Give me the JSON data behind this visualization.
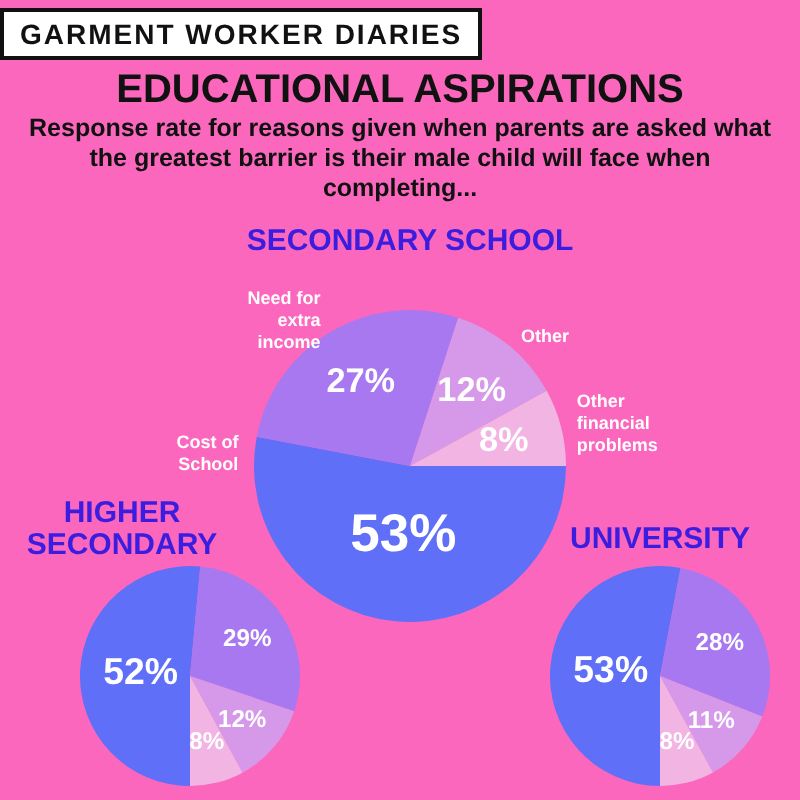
{
  "chart_data": [
    {
      "type": "pie",
      "title": "SECONDARY SCHOOL",
      "annotations": [
        "GARMENT WORKER DIARIES",
        "EDUCATIONAL ASPIRATIONS",
        "Response rate for reasons given when parents are asked what the greatest barrier is their male child will face when completing..."
      ],
      "categories": [
        "Cost of School",
        "Need for extra income",
        "Other",
        "Other financial problems"
      ],
      "values": [
        53,
        27,
        12,
        8
      ],
      "value_labels": [
        "53%",
        "27%",
        "12%",
        "8%"
      ],
      "colors": [
        "#5f6ff7",
        "#a878f0",
        "#d699ea",
        "#f2b4e2"
      ],
      "legend": false
    },
    {
      "type": "pie",
      "title": "HIGHER SECONDARY",
      "categories": [
        null,
        null,
        null,
        null
      ],
      "values": [
        52,
        29,
        12,
        8
      ],
      "value_labels": [
        "52%",
        "29%",
        "12%",
        "8%"
      ],
      "colors": [
        "#5f6ff7",
        "#a878f0",
        "#d699ea",
        "#f2b4e2"
      ],
      "legend": false
    },
    {
      "type": "pie",
      "title": "UNIVERSITY",
      "categories": [
        null,
        null,
        null,
        null
      ],
      "values": [
        53,
        28,
        11,
        8
      ],
      "value_labels": [
        "53%",
        "28%",
        "11%",
        "8%"
      ],
      "colors": [
        "#5f6ff7",
        "#a878f0",
        "#d699ea",
        "#f2b4e2"
      ],
      "legend": false
    }
  ]
}
